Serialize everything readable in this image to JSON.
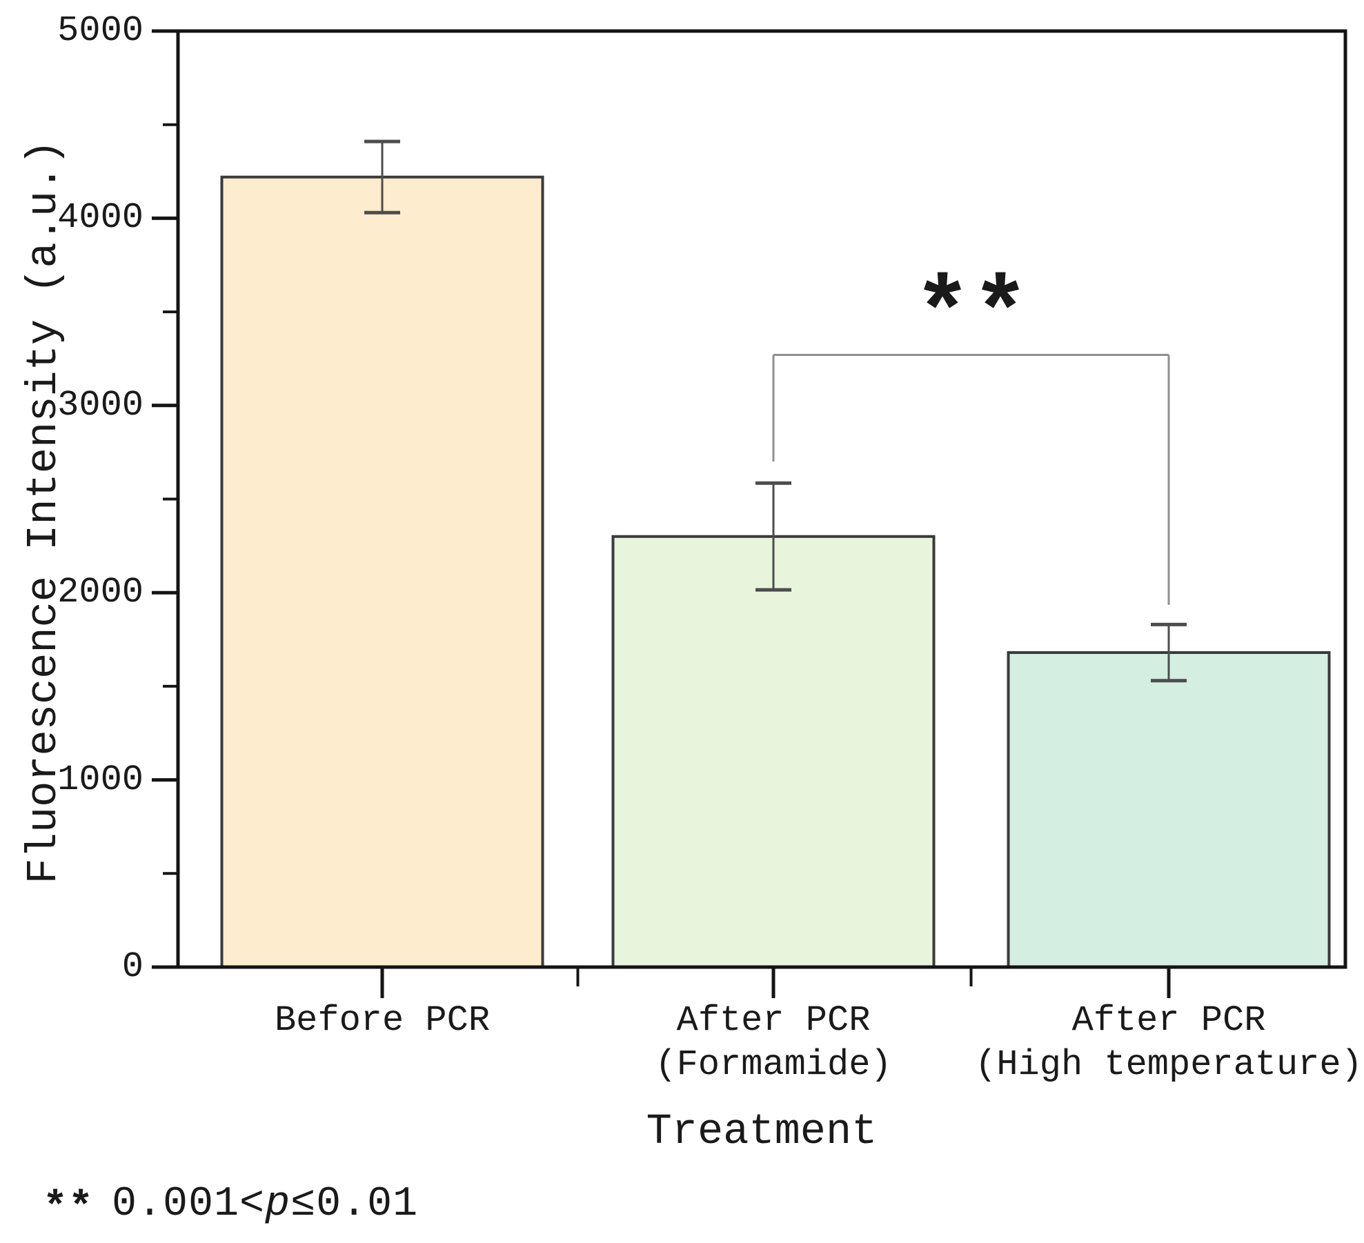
{
  "chart_data": {
    "type": "bar",
    "title": "",
    "xlabel": "Treatment",
    "ylabel": "Fluorescence Intensity (a.u.)",
    "categories": [
      {
        "lines": [
          "Before PCR"
        ]
      },
      {
        "lines": [
          "After PCR",
          "(Formamide)"
        ]
      },
      {
        "lines": [
          "After PCR",
          "(High temperature)"
        ]
      }
    ],
    "series": [
      {
        "name": "Fluorescence Intensity (a.u.)",
        "values": [
          4220,
          2300,
          1680
        ],
        "errors": [
          190,
          285,
          150
        ]
      }
    ],
    "ylim": [
      0,
      5000
    ],
    "yticks": [
      "0",
      "1000",
      "2000",
      "3000",
      "4000",
      "5000"
    ],
    "ytick_values": [
      0,
      1000,
      2000,
      3000,
      4000,
      5000
    ],
    "minor_ytick_values": [
      500,
      1500,
      2500,
      3500,
      4500
    ],
    "grid": false,
    "legend": null,
    "bar_colors": [
      "#fdeccd",
      "#e8f4db",
      "#d5eee2"
    ],
    "bar_edge_color": "#3a3a3a",
    "axis_color": "#141414",
    "error_bar_color": "#4d4d4d",
    "bracket_color": "#8f8f8f",
    "annotation": {
      "label": "**",
      "between_indices": [
        1,
        2
      ],
      "bracket_top_value": 3270,
      "left_drop_value": 2700,
      "right_drop_value": 1935
    },
    "footnote": {
      "marker": "**",
      "pre": "0.001<",
      "var": "p",
      "post": "≤0.01"
    }
  }
}
